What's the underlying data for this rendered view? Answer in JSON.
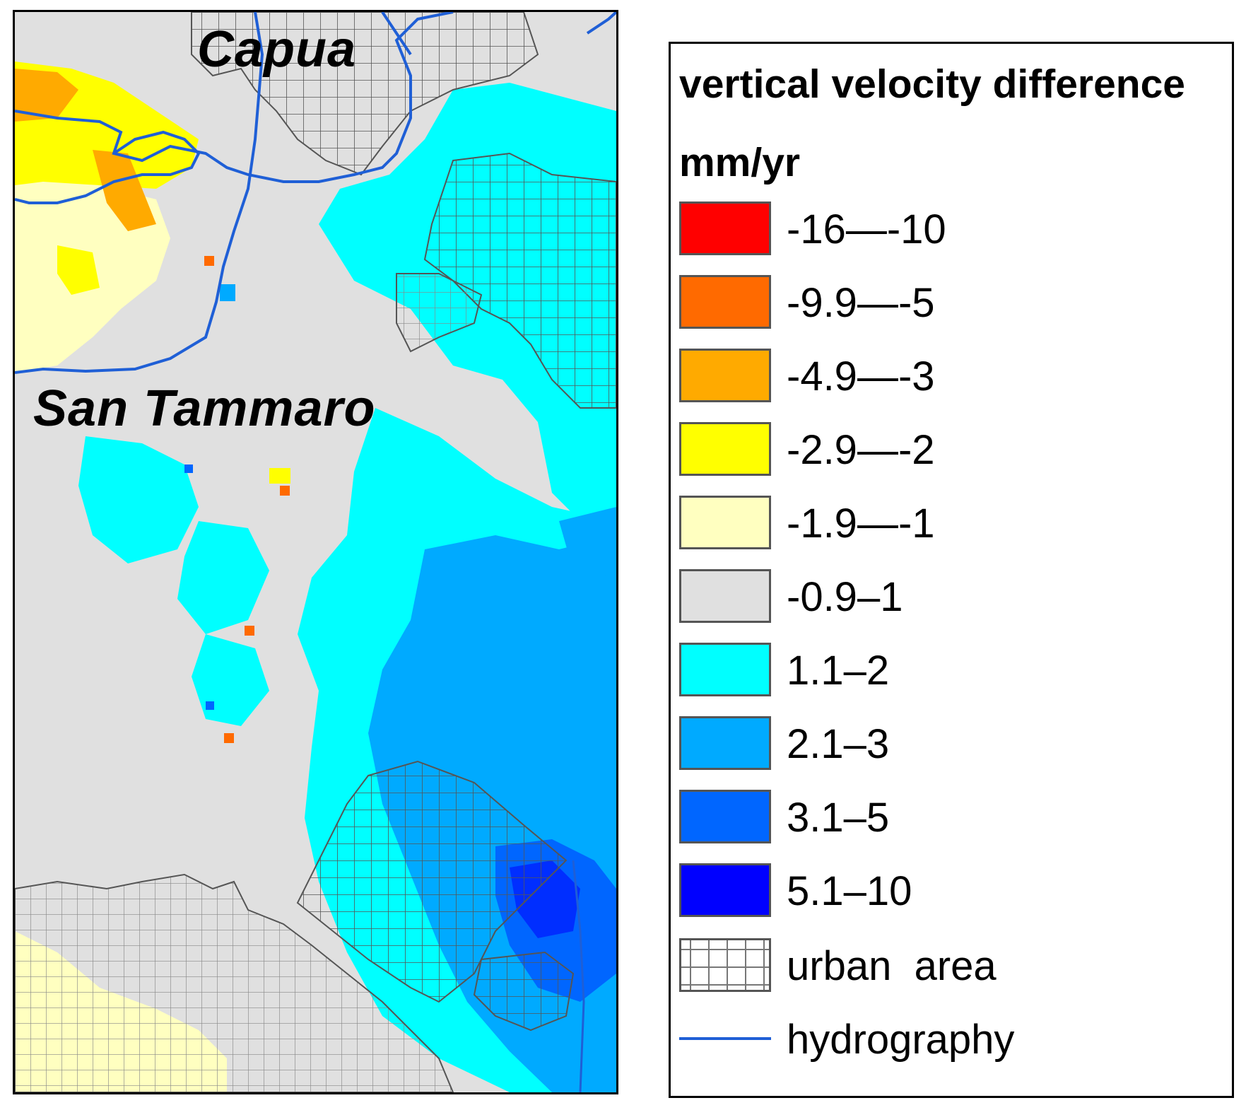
{
  "map": {
    "places": {
      "capua": "Capua",
      "san_tammaro": "San Tammaro"
    }
  },
  "legend": {
    "title": "vertical velocity difference",
    "unit": "mm/yr",
    "classes": [
      {
        "label": "-16—-10",
        "color": "#ff0000"
      },
      {
        "label": "-9.9—-5",
        "color": "#ff6a00"
      },
      {
        "label": "-4.9—-3",
        "color": "#ffaa00"
      },
      {
        "label": "-2.9—-2",
        "color": "#ffff00"
      },
      {
        "label": "-1.9—-1",
        "color": "#ffffc0"
      },
      {
        "label": "-0.9–1",
        "color": "#e0e0e0"
      },
      {
        "label": "1.1–2",
        "color": "#00ffff"
      },
      {
        "label": "2.1–3",
        "color": "#00aaff"
      },
      {
        "label": "3.1–5",
        "color": "#0066ff"
      },
      {
        "label": "5.1–10",
        "color": "#0000ff"
      }
    ],
    "urban_label": "urban  area",
    "hydro_label": "hydrography",
    "hydro_color": "#1f5fd6",
    "urban_line_color": "#555555"
  }
}
